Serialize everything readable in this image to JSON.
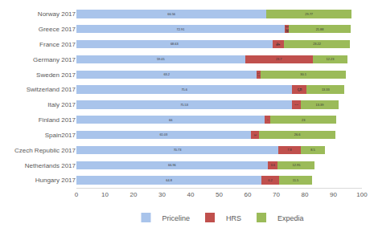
{
  "chart_data": {
    "type": "bar",
    "orientation": "horizontal",
    "stacked": true,
    "data_labels": true,
    "grid": false,
    "legend": "bottom",
    "categories": [
      "Norway 2017",
      "Greece 2017",
      "France 2017",
      "Germany 2017",
      "Sweden 2017",
      "Switzerland 2017",
      "Italy 2017",
      "Finland 2017",
      "Spain2017",
      "Czech Republic 2017",
      "Netherlands 2017",
      "Hungary 2017"
    ],
    "series": [
      {
        "name": "Priceline",
        "color": "#a9c4eb",
        "values": [
          66.56,
          72.91,
          68.63,
          59.05,
          63.2,
          75.6,
          75.53,
          66,
          61.03,
          70.73,
          66.96,
          64.8
        ]
      },
      {
        "name": "HRS",
        "color": "#c0504d",
        "values": [
          0,
          1.38,
          4,
          23.7,
          1.2,
          5,
          2.98,
          2,
          3,
          7.8,
          3.6,
          6.2
        ]
      },
      {
        "name": "Expedia",
        "color": "#9bbb59",
        "values": [
          29.77,
          21.88,
          23.22,
          12.23,
          30.1,
          13.33,
          13.39,
          23,
          26.6,
          8.5,
          12.95,
          11.5
        ]
      }
    ],
    "xlim": [
      0,
      100
    ],
    "xticks": [
      0,
      10,
      20,
      30,
      40,
      50,
      60,
      70,
      80,
      90,
      100
    ]
  }
}
